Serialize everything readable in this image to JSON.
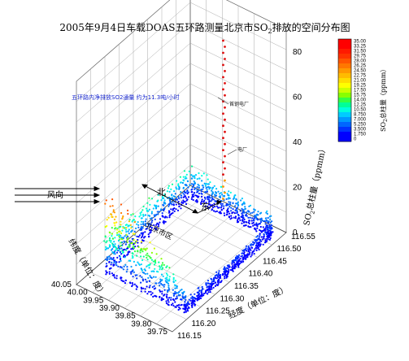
{
  "chart_data": {
    "type": "scatter3d",
    "title_main": "2005年9月4日车载DOAS五环路测量北京市SO",
    "title_sub": "2",
    "title_tail": "排放的空间分布图",
    "annotation_rate": "五环路内净排放SO2通量 约为11.3吨/小时",
    "label_wind": "风向",
    "label_north": "北",
    "label_east": "东",
    "label_city": "北京市区",
    "label_site1": "首钢电厂",
    "label_site2": "电厂",
    "xlabel": "纬度（单位：度）",
    "ylabel": "经度（单位：度）",
    "zlabel_a": "SO",
    "zlabel_sub": "2",
    "zlabel_b": "总柱量（ppmm）",
    "colorbar_label_a": "SO",
    "colorbar_label_sub": "2",
    "colorbar_label_b": "总柱量（ppmm）",
    "lat_ticks": [
      "40.05",
      "40.00",
      "39.95",
      "39.90",
      "39.85",
      "39.80",
      "39.75"
    ],
    "lon_ticks": [
      "116.15",
      "116.20",
      "116.25",
      "116.30",
      "116.35",
      "116.40",
      "116.45",
      "116.50",
      "116.55"
    ],
    "z_ticks": [
      "0",
      "20",
      "40",
      "60",
      "80"
    ],
    "zlim": [
      0,
      90
    ],
    "colorbar_ticks": [
      "35.00",
      "33.25",
      "31.50",
      "29.75",
      "28.00",
      "26.25",
      "24.50",
      "22.75",
      "21.00",
      "19.25",
      "17.50",
      "15.75",
      "14.00",
      "12.25",
      "10.50",
      "8.750",
      "7.000",
      "5.250",
      "3.500",
      "1.750",
      "0"
    ],
    "colorbar_colors": [
      "#ff0000",
      "#ff0000",
      "#ff1a00",
      "#ff3300",
      "#ff5500",
      "#ff7700",
      "#ff9900",
      "#ffbb00",
      "#ffdd00",
      "#ffff00",
      "#ccff00",
      "#88ff00",
      "#33ff44",
      "#00ff99",
      "#00ffdd",
      "#00ccff",
      "#0099ff",
      "#0066ff",
      "#0033ff",
      "#0000ff",
      "#0000ff"
    ],
    "series": [
      {
        "segment": "north",
        "lon": [
          116.22,
          116.52
        ],
        "lat": [
          40.02,
          40.02
        ],
        "so2": [
          15,
          12
        ]
      },
      {
        "segment": "east",
        "lon": [
          116.52,
          116.52
        ],
        "lat": [
          40.02,
          39.77
        ],
        "so2": [
          12,
          8
        ]
      },
      {
        "segment": "south",
        "lon": [
          116.52,
          116.22
        ],
        "lat": [
          39.77,
          39.77
        ],
        "so2": [
          5,
          4
        ]
      },
      {
        "segment": "west",
        "lon": [
          116.22,
          116.22
        ],
        "lat": [
          39.77,
          40.02
        ],
        "so2": [
          8,
          35
        ]
      },
      {
        "segment": "spike",
        "lon": [
          116.5,
          116.5
        ],
        "lat": [
          39.9,
          39.9
        ],
        "so2": [
          10,
          80
        ]
      }
    ]
  }
}
